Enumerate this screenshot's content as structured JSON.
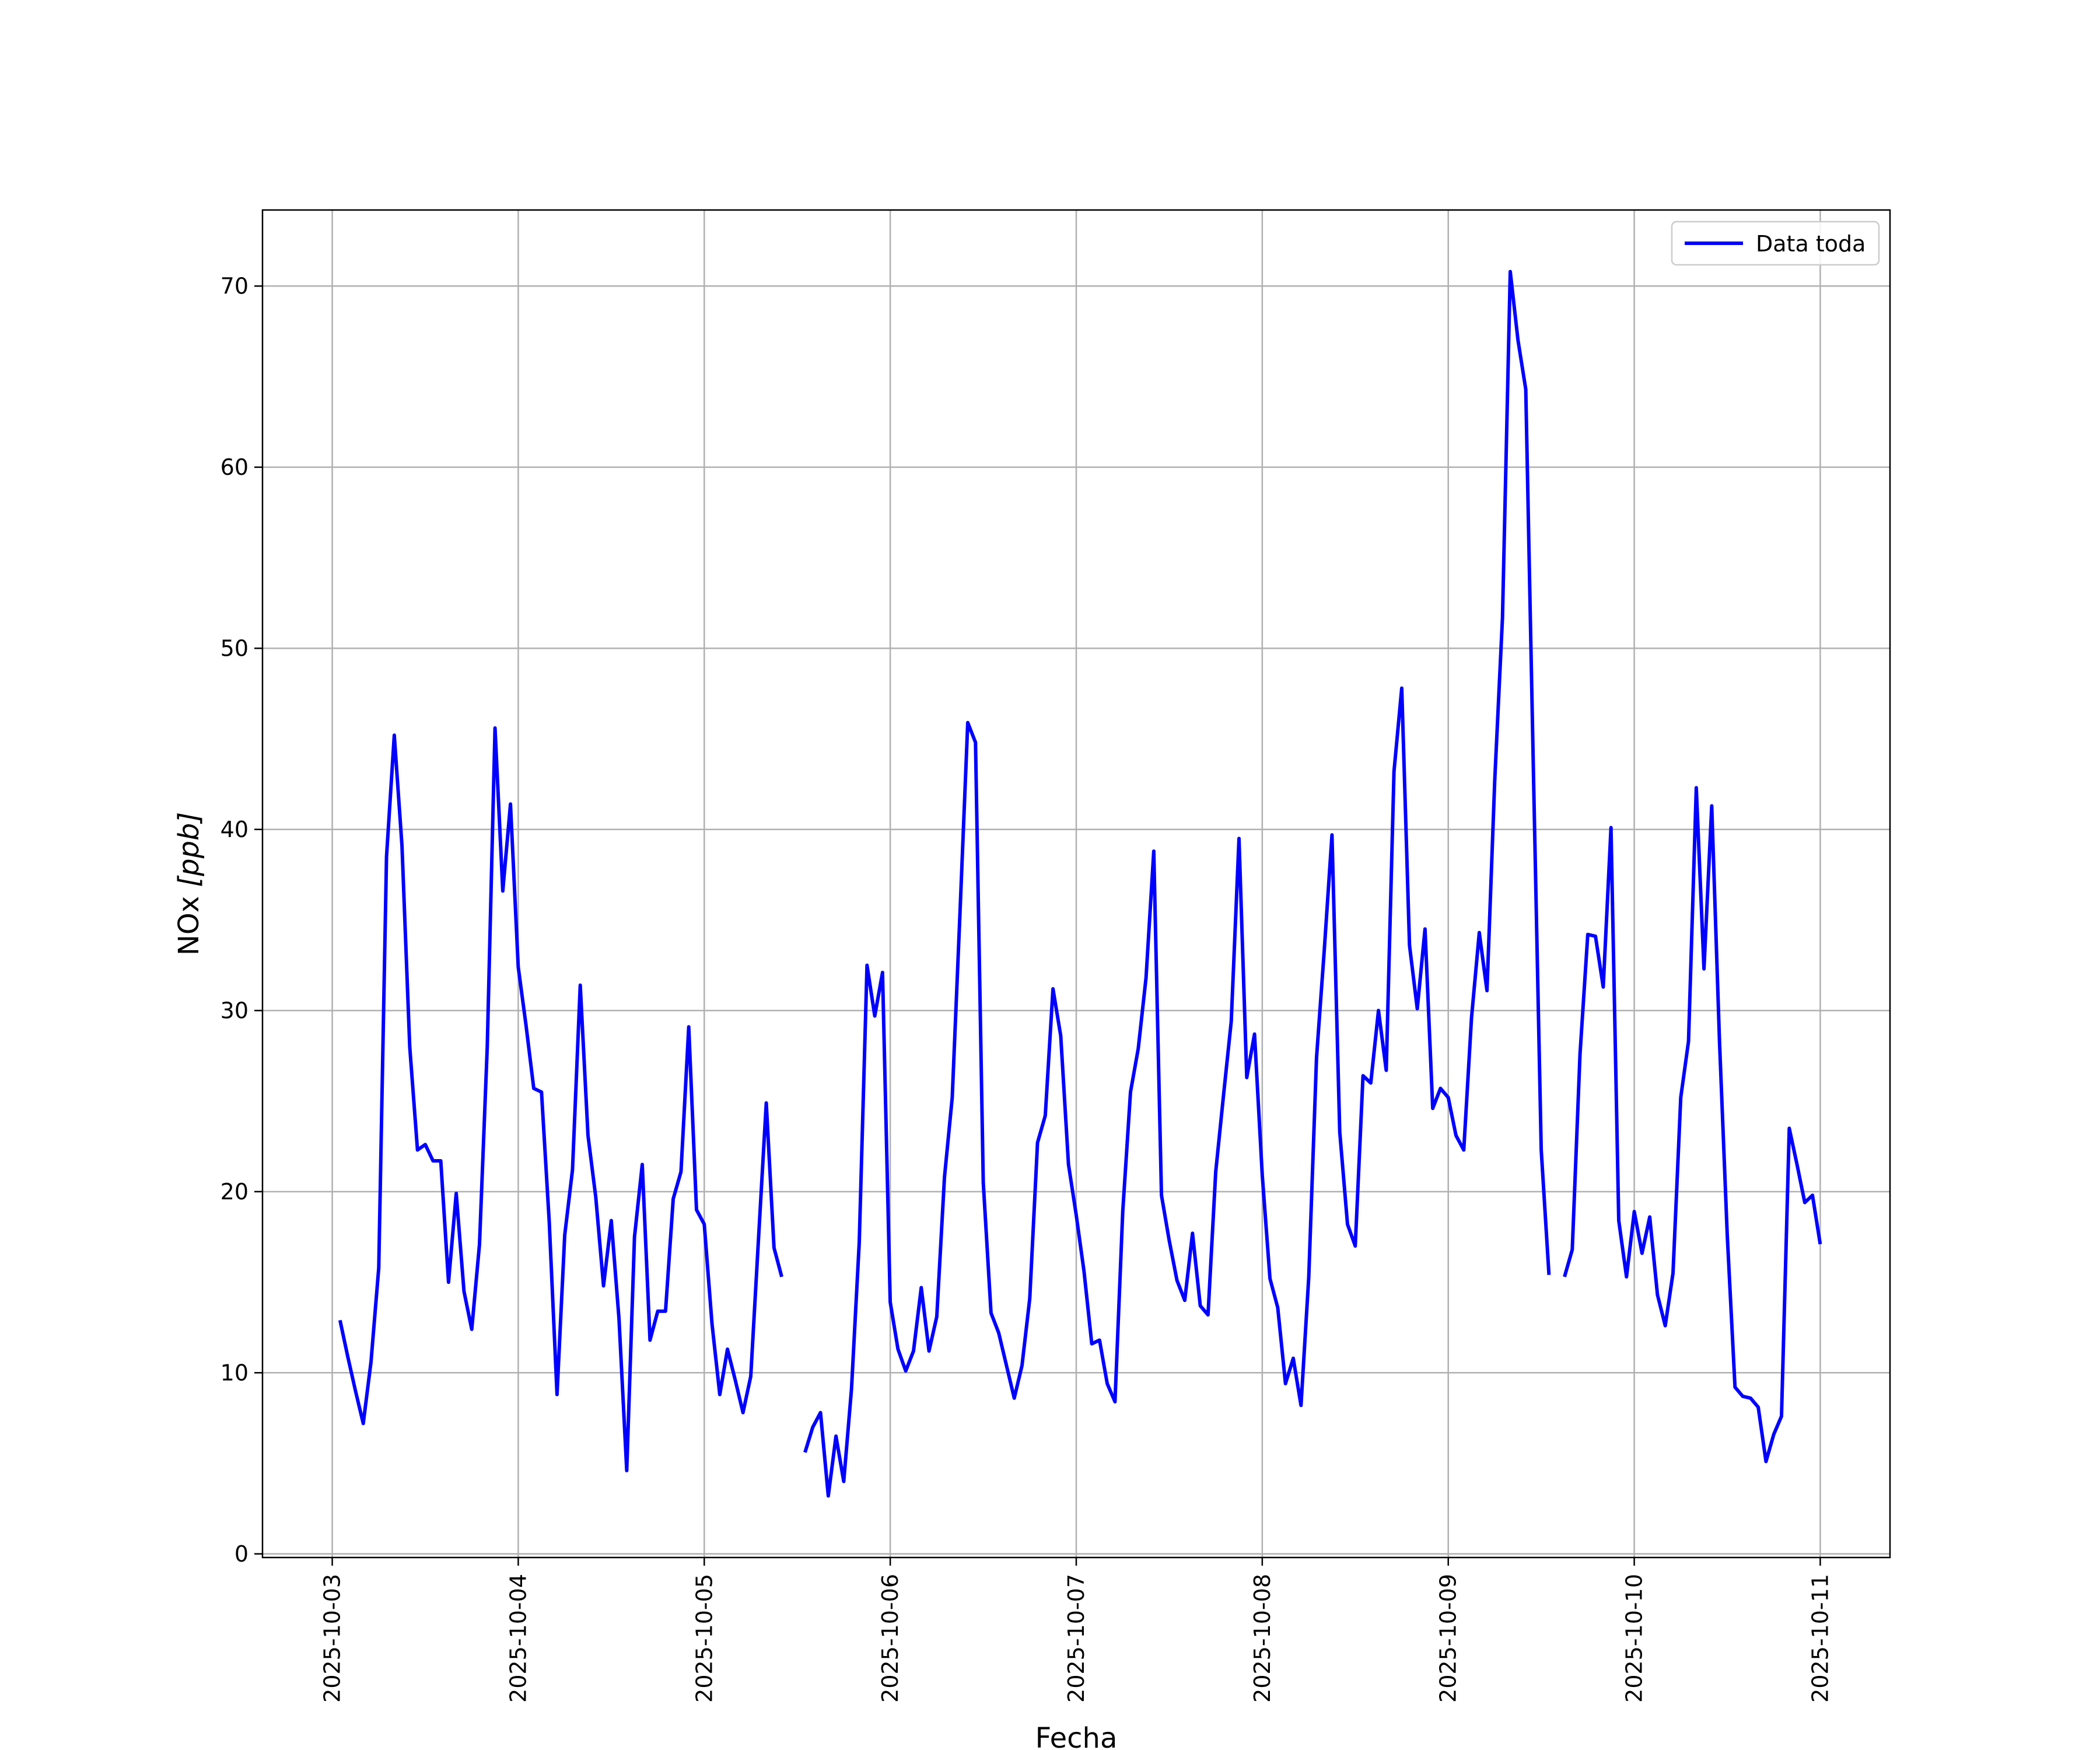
{
  "chart_data": {
    "type": "line",
    "title": "",
    "xlabel": "Fecha",
    "ylabel_main": "NOx ",
    "ylabel_unit": "[ppb]",
    "xlim": [
      "2025-10-02 15:00",
      "2025-10-11 09:00"
    ],
    "ylim": [
      -0.2,
      74.2
    ],
    "grid": true,
    "legend_position": "top-right",
    "x_ticks": [
      "2025-10-03",
      "2025-10-04",
      "2025-10-05",
      "2025-10-06",
      "2025-10-07",
      "2025-10-08",
      "2025-10-09",
      "2025-10-10",
      "2025-10-11"
    ],
    "y_ticks": [
      0,
      10,
      20,
      30,
      40,
      50,
      60,
      70
    ],
    "series": [
      {
        "name": "Data toda",
        "color": "#0000ff",
        "x": [
          "2025-10-03 01:00",
          "2025-10-03 02:00",
          "2025-10-03 03:00",
          "2025-10-03 04:00",
          "2025-10-03 05:00",
          "2025-10-03 06:00",
          "2025-10-03 07:00",
          "2025-10-03 08:00",
          "2025-10-03 09:00",
          "2025-10-03 10:00",
          "2025-10-03 11:00",
          "2025-10-03 12:00",
          "2025-10-03 13:00",
          "2025-10-03 14:00",
          "2025-10-03 15:00",
          "2025-10-03 16:00",
          "2025-10-03 17:00",
          "2025-10-03 18:00",
          "2025-10-03 19:00",
          "2025-10-03 20:00",
          "2025-10-03 21:00",
          "2025-10-03 22:00",
          "2025-10-03 23:00",
          "2025-10-04 00:00",
          "2025-10-04 01:00",
          "2025-10-04 02:00",
          "2025-10-04 03:00",
          "2025-10-04 04:00",
          "2025-10-04 05:00",
          "2025-10-04 06:00",
          "2025-10-04 07:00",
          "2025-10-04 08:00",
          "2025-10-04 09:00",
          "2025-10-04 10:00",
          "2025-10-04 11:00",
          "2025-10-04 12:00",
          "2025-10-04 13:00",
          "2025-10-04 14:00",
          "2025-10-04 15:00",
          "2025-10-04 16:00",
          "2025-10-04 17:00",
          "2025-10-04 18:00",
          "2025-10-04 19:00",
          "2025-10-04 20:00",
          "2025-10-04 21:00",
          "2025-10-04 22:00",
          "2025-10-04 23:00",
          "2025-10-05 00:00",
          "2025-10-05 01:00",
          "2025-10-05 02:00",
          "2025-10-05 03:00",
          "2025-10-05 04:00",
          "2025-10-05 05:00",
          "2025-10-05 06:00",
          "2025-10-05 07:00",
          "2025-10-05 08:00",
          "2025-10-05 09:00",
          "2025-10-05 10:00",
          "2025-10-05 11:00",
          "2025-10-05 12:00",
          "2025-10-05 13:00",
          "2025-10-05 14:00",
          "2025-10-05 15:00",
          "2025-10-05 16:00",
          "2025-10-05 17:00",
          "2025-10-05 18:00",
          "2025-10-05 19:00",
          "2025-10-05 20:00",
          "2025-10-05 21:00",
          "2025-10-05 22:00",
          "2025-10-05 23:00",
          "2025-10-06 00:00",
          "2025-10-06 01:00",
          "2025-10-06 02:00",
          "2025-10-06 03:00",
          "2025-10-06 04:00",
          "2025-10-06 05:00",
          "2025-10-06 06:00",
          "2025-10-06 07:00",
          "2025-10-06 08:00",
          "2025-10-06 09:00",
          "2025-10-06 10:00",
          "2025-10-06 11:00",
          "2025-10-06 12:00",
          "2025-10-06 13:00",
          "2025-10-06 14:00",
          "2025-10-06 15:00",
          "2025-10-06 16:00",
          "2025-10-06 17:00",
          "2025-10-06 18:00",
          "2025-10-06 19:00",
          "2025-10-06 20:00",
          "2025-10-06 21:00",
          "2025-10-06 22:00",
          "2025-10-06 23:00",
          "2025-10-07 00:00",
          "2025-10-07 01:00",
          "2025-10-07 02:00",
          "2025-10-07 03:00",
          "2025-10-07 04:00",
          "2025-10-07 05:00",
          "2025-10-07 06:00",
          "2025-10-07 07:00",
          "2025-10-07 08:00",
          "2025-10-07 09:00",
          "2025-10-07 10:00",
          "2025-10-07 11:00",
          "2025-10-07 12:00",
          "2025-10-07 13:00",
          "2025-10-07 14:00",
          "2025-10-07 15:00",
          "2025-10-07 16:00",
          "2025-10-07 17:00",
          "2025-10-07 18:00",
          "2025-10-07 19:00",
          "2025-10-07 20:00",
          "2025-10-07 21:00",
          "2025-10-07 22:00",
          "2025-10-07 23:00",
          "2025-10-08 00:00",
          "2025-10-08 01:00",
          "2025-10-08 02:00",
          "2025-10-08 03:00",
          "2025-10-08 04:00",
          "2025-10-08 05:00",
          "2025-10-08 06:00",
          "2025-10-08 07:00",
          "2025-10-08 08:00",
          "2025-10-08 09:00",
          "2025-10-08 10:00",
          "2025-10-08 11:00",
          "2025-10-08 12:00",
          "2025-10-08 13:00",
          "2025-10-08 14:00",
          "2025-10-08 15:00",
          "2025-10-08 16:00",
          "2025-10-08 17:00",
          "2025-10-08 18:00",
          "2025-10-08 19:00",
          "2025-10-08 20:00",
          "2025-10-08 21:00",
          "2025-10-08 22:00",
          "2025-10-08 23:00",
          "2025-10-09 00:00",
          "2025-10-09 01:00",
          "2025-10-09 02:00",
          "2025-10-09 03:00",
          "2025-10-09 04:00",
          "2025-10-09 05:00",
          "2025-10-09 06:00",
          "2025-10-09 07:00",
          "2025-10-09 08:00",
          "2025-10-09 09:00",
          "2025-10-09 10:00",
          "2025-10-09 11:00",
          "2025-10-09 12:00",
          "2025-10-09 13:00",
          "2025-10-09 14:00",
          "2025-10-09 15:00",
          "2025-10-09 16:00",
          "2025-10-09 17:00",
          "2025-10-09 18:00",
          "2025-10-09 19:00",
          "2025-10-09 20:00",
          "2025-10-09 21:00",
          "2025-10-09 22:00",
          "2025-10-09 23:00",
          "2025-10-10 00:00",
          "2025-10-10 01:00",
          "2025-10-10 02:00",
          "2025-10-10 03:00",
          "2025-10-10 04:00",
          "2025-10-10 05:00",
          "2025-10-10 06:00",
          "2025-10-10 07:00",
          "2025-10-10 08:00",
          "2025-10-10 09:00",
          "2025-10-10 10:00",
          "2025-10-10 11:00",
          "2025-10-10 12:00",
          "2025-10-10 13:00",
          "2025-10-10 14:00",
          "2025-10-10 15:00",
          "2025-10-10 16:00",
          "2025-10-10 17:00",
          "2025-10-10 18:00",
          "2025-10-10 19:00",
          "2025-10-10 20:00",
          "2025-10-10 21:00",
          "2025-10-10 22:00",
          "2025-10-10 23:00",
          "2025-10-11 00:00"
        ],
        "y": [
          12.9,
          10.9,
          9.0,
          7.2,
          10.6,
          15.8,
          38.5,
          45.2,
          39.1,
          28.0,
          22.3,
          22.6,
          21.7,
          21.7,
          15.0,
          19.9,
          14.5,
          12.4,
          17.1,
          28.0,
          45.6,
          36.6,
          41.4,
          32.4,
          29.2,
          25.7,
          25.5,
          18.3,
          8.8,
          17.6,
          21.2,
          31.4,
          23.1,
          19.7,
          14.8,
          18.4,
          13.0,
          4.6,
          17.5,
          21.5,
          11.8,
          13.4,
          13.4,
          19.6,
          21.1,
          29.1,
          19.0,
          18.2,
          12.7,
          8.8,
          11.3,
          9.6,
          7.8,
          9.8,
          17.4,
          24.9,
          16.9,
          15.3,
          null,
          null,
          5.6,
          7.0,
          7.8,
          3.2,
          6.5,
          4.0,
          9.1,
          17.2,
          32.5,
          29.7,
          32.1,
          13.9,
          11.3,
          10.1,
          11.2,
          14.7,
          11.2,
          13.1,
          20.8,
          25.2,
          35.4,
          45.9,
          44.8,
          20.5,
          13.3,
          12.2,
          10.4,
          8.6,
          10.4,
          14.1,
          22.7,
          24.2,
          31.2,
          28.6,
          21.5,
          18.7,
          15.6,
          11.6,
          11.8,
          9.4,
          8.4,
          18.9,
          25.5,
          27.9,
          31.8,
          38.8,
          19.8,
          17.3,
          15.1,
          14.0,
          17.7,
          13.7,
          13.2,
          21.1,
          25.3,
          29.4,
          39.5,
          26.3,
          28.7,
          20.9,
          15.2,
          13.6,
          9.4,
          10.8,
          8.2,
          15.3,
          27.4,
          33.3,
          39.7,
          23.3,
          18.2,
          17.0,
          26.4,
          26.0,
          30.0,
          26.7,
          43.2,
          47.8,
          33.6,
          30.1,
          34.5,
          24.6,
          25.7,
          25.2,
          23.1,
          22.3,
          29.6,
          34.3,
          31.1,
          42.7,
          51.7,
          70.8,
          67.0,
          64.3,
          42.9,
          22.3,
          15.4,
          null,
          15.3,
          16.8,
          27.6,
          34.2,
          34.1,
          31.3,
          40.1,
          18.4,
          15.3,
          18.9,
          16.6,
          18.6,
          14.3,
          12.6,
          15.5,
          25.2,
          28.3,
          42.3,
          32.3,
          41.3,
          28.3,
          17.6,
          9.2,
          8.7,
          8.6,
          8.1,
          5.1,
          6.6,
          7.6,
          23.5,
          21.5,
          19.4,
          19.8,
          17.1
        ]
      }
    ]
  }
}
